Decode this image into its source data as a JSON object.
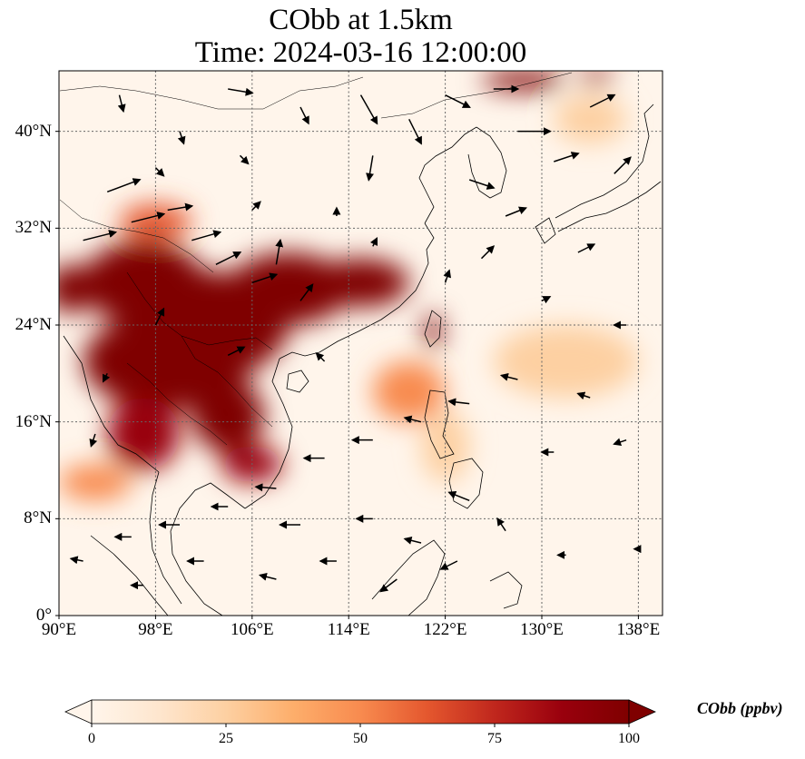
{
  "title": {
    "line1": "CObb at 1.5km",
    "line2": "Time: 2024-03-16 12:00:00"
  },
  "map": {
    "extent": {
      "lon": [
        90,
        140
      ],
      "lat": [
        0,
        45
      ]
    },
    "lat_ticks": [
      {
        "value": 0,
        "label": "0°"
      },
      {
        "value": 8,
        "label": "8°N"
      },
      {
        "value": 16,
        "label": "16°N"
      },
      {
        "value": 24,
        "label": "24°N"
      },
      {
        "value": 32,
        "label": "32°N"
      },
      {
        "value": 40,
        "label": "40°N"
      }
    ],
    "lon_ticks": [
      {
        "value": 90,
        "label": "90°E"
      },
      {
        "value": 98,
        "label": "98°E"
      },
      {
        "value": 106,
        "label": "106°E"
      },
      {
        "value": 114,
        "label": "114°E"
      },
      {
        "value": 122,
        "label": "122°E"
      },
      {
        "value": 130,
        "label": "130°E"
      },
      {
        "value": 138,
        "label": "138°E"
      }
    ],
    "gridlines": true,
    "background_color": "#fff5eb",
    "plumes": [
      {
        "lon": 99,
        "lat": 21,
        "rlon": 7,
        "rlat": 4,
        "value": 100
      },
      {
        "lon": 102,
        "lat": 24,
        "rlon": 7,
        "rlat": 4.5,
        "value": 100
      },
      {
        "lon": 97,
        "lat": 27.5,
        "rlon": 5,
        "rlat": 3.5,
        "value": 100
      },
      {
        "lon": 109,
        "lat": 27,
        "rlon": 5,
        "rlat": 3,
        "value": 100
      },
      {
        "lon": 115,
        "lat": 27.5,
        "rlon": 4,
        "rlat": 2,
        "value": 95
      },
      {
        "lon": 104,
        "lat": 16.5,
        "rlon": 3,
        "rlat": 3,
        "value": 100
      },
      {
        "lon": 97,
        "lat": 15,
        "rlon": 3,
        "rlat": 3,
        "value": 90
      },
      {
        "lon": 106,
        "lat": 12.5,
        "rlon": 2.5,
        "rlat": 1.5,
        "value": 85
      },
      {
        "lon": 91,
        "lat": 27,
        "rlon": 2,
        "rlat": 2,
        "value": 100
      },
      {
        "lon": 119,
        "lat": 18.5,
        "rlon": 3,
        "rlat": 2.5,
        "value": 55
      },
      {
        "lon": 121,
        "lat": 23.5,
        "rlon": 0.7,
        "rlat": 1.5,
        "value": 95
      },
      {
        "lon": 128.5,
        "lat": 44.2,
        "rlon": 3.5,
        "rlat": 0.8,
        "value": 100
      },
      {
        "lon": 134.5,
        "lat": 44.5,
        "rlon": 1.5,
        "rlat": 0.6,
        "value": 85
      },
      {
        "lon": 98,
        "lat": 32.5,
        "rlon": 3,
        "rlat": 1.5,
        "value": 60
      },
      {
        "lon": 93,
        "lat": 11,
        "rlon": 3,
        "rlat": 1.5,
        "value": 45
      },
      {
        "lon": 132,
        "lat": 21,
        "rlon": 6,
        "rlat": 3,
        "value": 20
      },
      {
        "lon": 134,
        "lat": 41,
        "rlon": 3,
        "rlat": 2,
        "value": 30
      },
      {
        "lon": 122,
        "lat": 14,
        "rlon": 2,
        "rlat": 3,
        "value": 30
      }
    ],
    "wind_vectors": [
      {
        "lon": 92,
        "lat": 31,
        "u": 4,
        "v": 1
      },
      {
        "lon": 94,
        "lat": 35,
        "u": 4,
        "v": 1.5
      },
      {
        "lon": 96,
        "lat": 32.5,
        "u": 4,
        "v": 1
      },
      {
        "lon": 99,
        "lat": 33.5,
        "u": 3,
        "v": 0.5
      },
      {
        "lon": 101,
        "lat": 31,
        "u": 3.5,
        "v": 1
      },
      {
        "lon": 103,
        "lat": 29,
        "u": 3,
        "v": 1.5
      },
      {
        "lon": 106,
        "lat": 27.5,
        "u": 3,
        "v": 1
      },
      {
        "lon": 108,
        "lat": 29,
        "u": 0.5,
        "v": 3
      },
      {
        "lon": 110,
        "lat": 26,
        "u": 1.5,
        "v": 2
      },
      {
        "lon": 95,
        "lat": 43,
        "u": 0.5,
        "v": -2
      },
      {
        "lon": 100,
        "lat": 40,
        "u": 0.5,
        "v": -1.5
      },
      {
        "lon": 104,
        "lat": 43.5,
        "u": 3,
        "v": -0.5
      },
      {
        "lon": 110,
        "lat": 42,
        "u": 1,
        "v": -2
      },
      {
        "lon": 115,
        "lat": 43,
        "u": 2,
        "v": -3.5
      },
      {
        "lon": 116,
        "lat": 38,
        "u": -0.5,
        "v": -3
      },
      {
        "lon": 119,
        "lat": 41,
        "u": 1.5,
        "v": -3
      },
      {
        "lon": 122,
        "lat": 43,
        "u": 3,
        "v": -1.5
      },
      {
        "lon": 126,
        "lat": 43.5,
        "u": 3,
        "v": 0
      },
      {
        "lon": 128,
        "lat": 40,
        "u": 4,
        "v": 0
      },
      {
        "lon": 131,
        "lat": 37.5,
        "u": 3,
        "v": 1
      },
      {
        "lon": 134,
        "lat": 42,
        "u": 3,
        "v": 1.5
      },
      {
        "lon": 136,
        "lat": 36.5,
        "u": 2,
        "v": 2
      },
      {
        "lon": 124,
        "lat": 36,
        "u": 3,
        "v": -1
      },
      {
        "lon": 127,
        "lat": 33,
        "u": 2.5,
        "v": 1
      },
      {
        "lon": 125,
        "lat": 29.5,
        "u": 1.5,
        "v": 1.5
      },
      {
        "lon": 133,
        "lat": 30,
        "u": 2,
        "v": 1
      },
      {
        "lon": 137,
        "lat": 24,
        "u": -1.5,
        "v": 0
      },
      {
        "lon": 128,
        "lat": 19.5,
        "u": -2,
        "v": 0.5
      },
      {
        "lon": 124,
        "lat": 17.5,
        "u": -2.5,
        "v": 0.3
      },
      {
        "lon": 120,
        "lat": 16,
        "u": -2,
        "v": 0.5
      },
      {
        "lon": 116,
        "lat": 14.5,
        "u": -2.5,
        "v": 0
      },
      {
        "lon": 112,
        "lat": 13,
        "u": -2.5,
        "v": 0
      },
      {
        "lon": 108,
        "lat": 10.5,
        "u": -2.5,
        "v": 0.2
      },
      {
        "lon": 104,
        "lat": 9,
        "u": -2,
        "v": 0
      },
      {
        "lon": 100,
        "lat": 7.5,
        "u": -2.5,
        "v": 0
      },
      {
        "lon": 96,
        "lat": 6.5,
        "u": -2,
        "v": 0
      },
      {
        "lon": 92,
        "lat": 4.5,
        "u": -1.5,
        "v": 0.3
      },
      {
        "lon": 110,
        "lat": 7.5,
        "u": -2.5,
        "v": 0
      },
      {
        "lon": 116,
        "lat": 8,
        "u": -2,
        "v": 0
      },
      {
        "lon": 120,
        "lat": 6,
        "u": -2,
        "v": 0.5
      },
      {
        "lon": 124,
        "lat": 9.5,
        "u": -2.5,
        "v": 1
      },
      {
        "lon": 127,
        "lat": 7,
        "u": -1,
        "v": 1.5
      },
      {
        "lon": 123,
        "lat": 4.5,
        "u": -2,
        "v": -1
      },
      {
        "lon": 118,
        "lat": 3,
        "u": -2,
        "v": -1.5
      },
      {
        "lon": 113,
        "lat": 4.5,
        "u": -2,
        "v": 0
      },
      {
        "lon": 108,
        "lat": 3,
        "u": -2,
        "v": 0.5
      },
      {
        "lon": 102,
        "lat": 4.5,
        "u": -2,
        "v": 0
      },
      {
        "lon": 97,
        "lat": 2.5,
        "u": -1.5,
        "v": 0
      },
      {
        "lon": 131,
        "lat": 13.5,
        "u": -1.5,
        "v": 0
      },
      {
        "lon": 137,
        "lat": 14.5,
        "u": -1.5,
        "v": -0.5
      },
      {
        "lon": 134,
        "lat": 18,
        "u": -1.5,
        "v": 0.5
      },
      {
        "lon": 112,
        "lat": 21,
        "u": -1,
        "v": 1
      },
      {
        "lon": 104,
        "lat": 21.5,
        "u": 2,
        "v": 1
      },
      {
        "lon": 98,
        "lat": 24,
        "u": 1,
        "v": 2
      },
      {
        "lon": 94,
        "lat": 20,
        "u": -0.5,
        "v": -1
      },
      {
        "lon": 93,
        "lat": 15,
        "u": -0.5,
        "v": -1.5
      },
      {
        "lon": 106,
        "lat": 33.5,
        "u": 1,
        "v": 1
      },
      {
        "lon": 113,
        "lat": 33,
        "u": 0,
        "v": 1
      },
      {
        "lon": 116,
        "lat": 30.5,
        "u": 0.5,
        "v": 1
      },
      {
        "lon": 122,
        "lat": 27.5,
        "u": 0.5,
        "v": 1.5
      },
      {
        "lon": 130,
        "lat": 26,
        "u": 1,
        "v": 0.5
      },
      {
        "lon": 132,
        "lat": 5,
        "u": -1,
        "v": 0
      },
      {
        "lon": 138,
        "lat": 5.5,
        "u": -0.5,
        "v": 0
      },
      {
        "lon": 105,
        "lat": 38,
        "u": 1,
        "v": -1
      },
      {
        "lon": 98,
        "lat": 37,
        "u": 1,
        "v": -1
      }
    ]
  },
  "colorbar": {
    "label": "CObb (ppbv)",
    "ticks": [
      {
        "value": 0,
        "label": "0"
      },
      {
        "value": 25,
        "label": "25"
      },
      {
        "value": 50,
        "label": "50"
      },
      {
        "value": 75,
        "label": "75"
      },
      {
        "value": 100,
        "label": "100"
      }
    ],
    "range": [
      0,
      100
    ],
    "extend": "both",
    "colormap": "OrRd",
    "colors": [
      "#fff5eb",
      "#fee6ce",
      "#fdd0a2",
      "#fdae6b",
      "#f88b4f",
      "#e4572e",
      "#c0271d",
      "#99000d",
      "#7f0000"
    ]
  }
}
